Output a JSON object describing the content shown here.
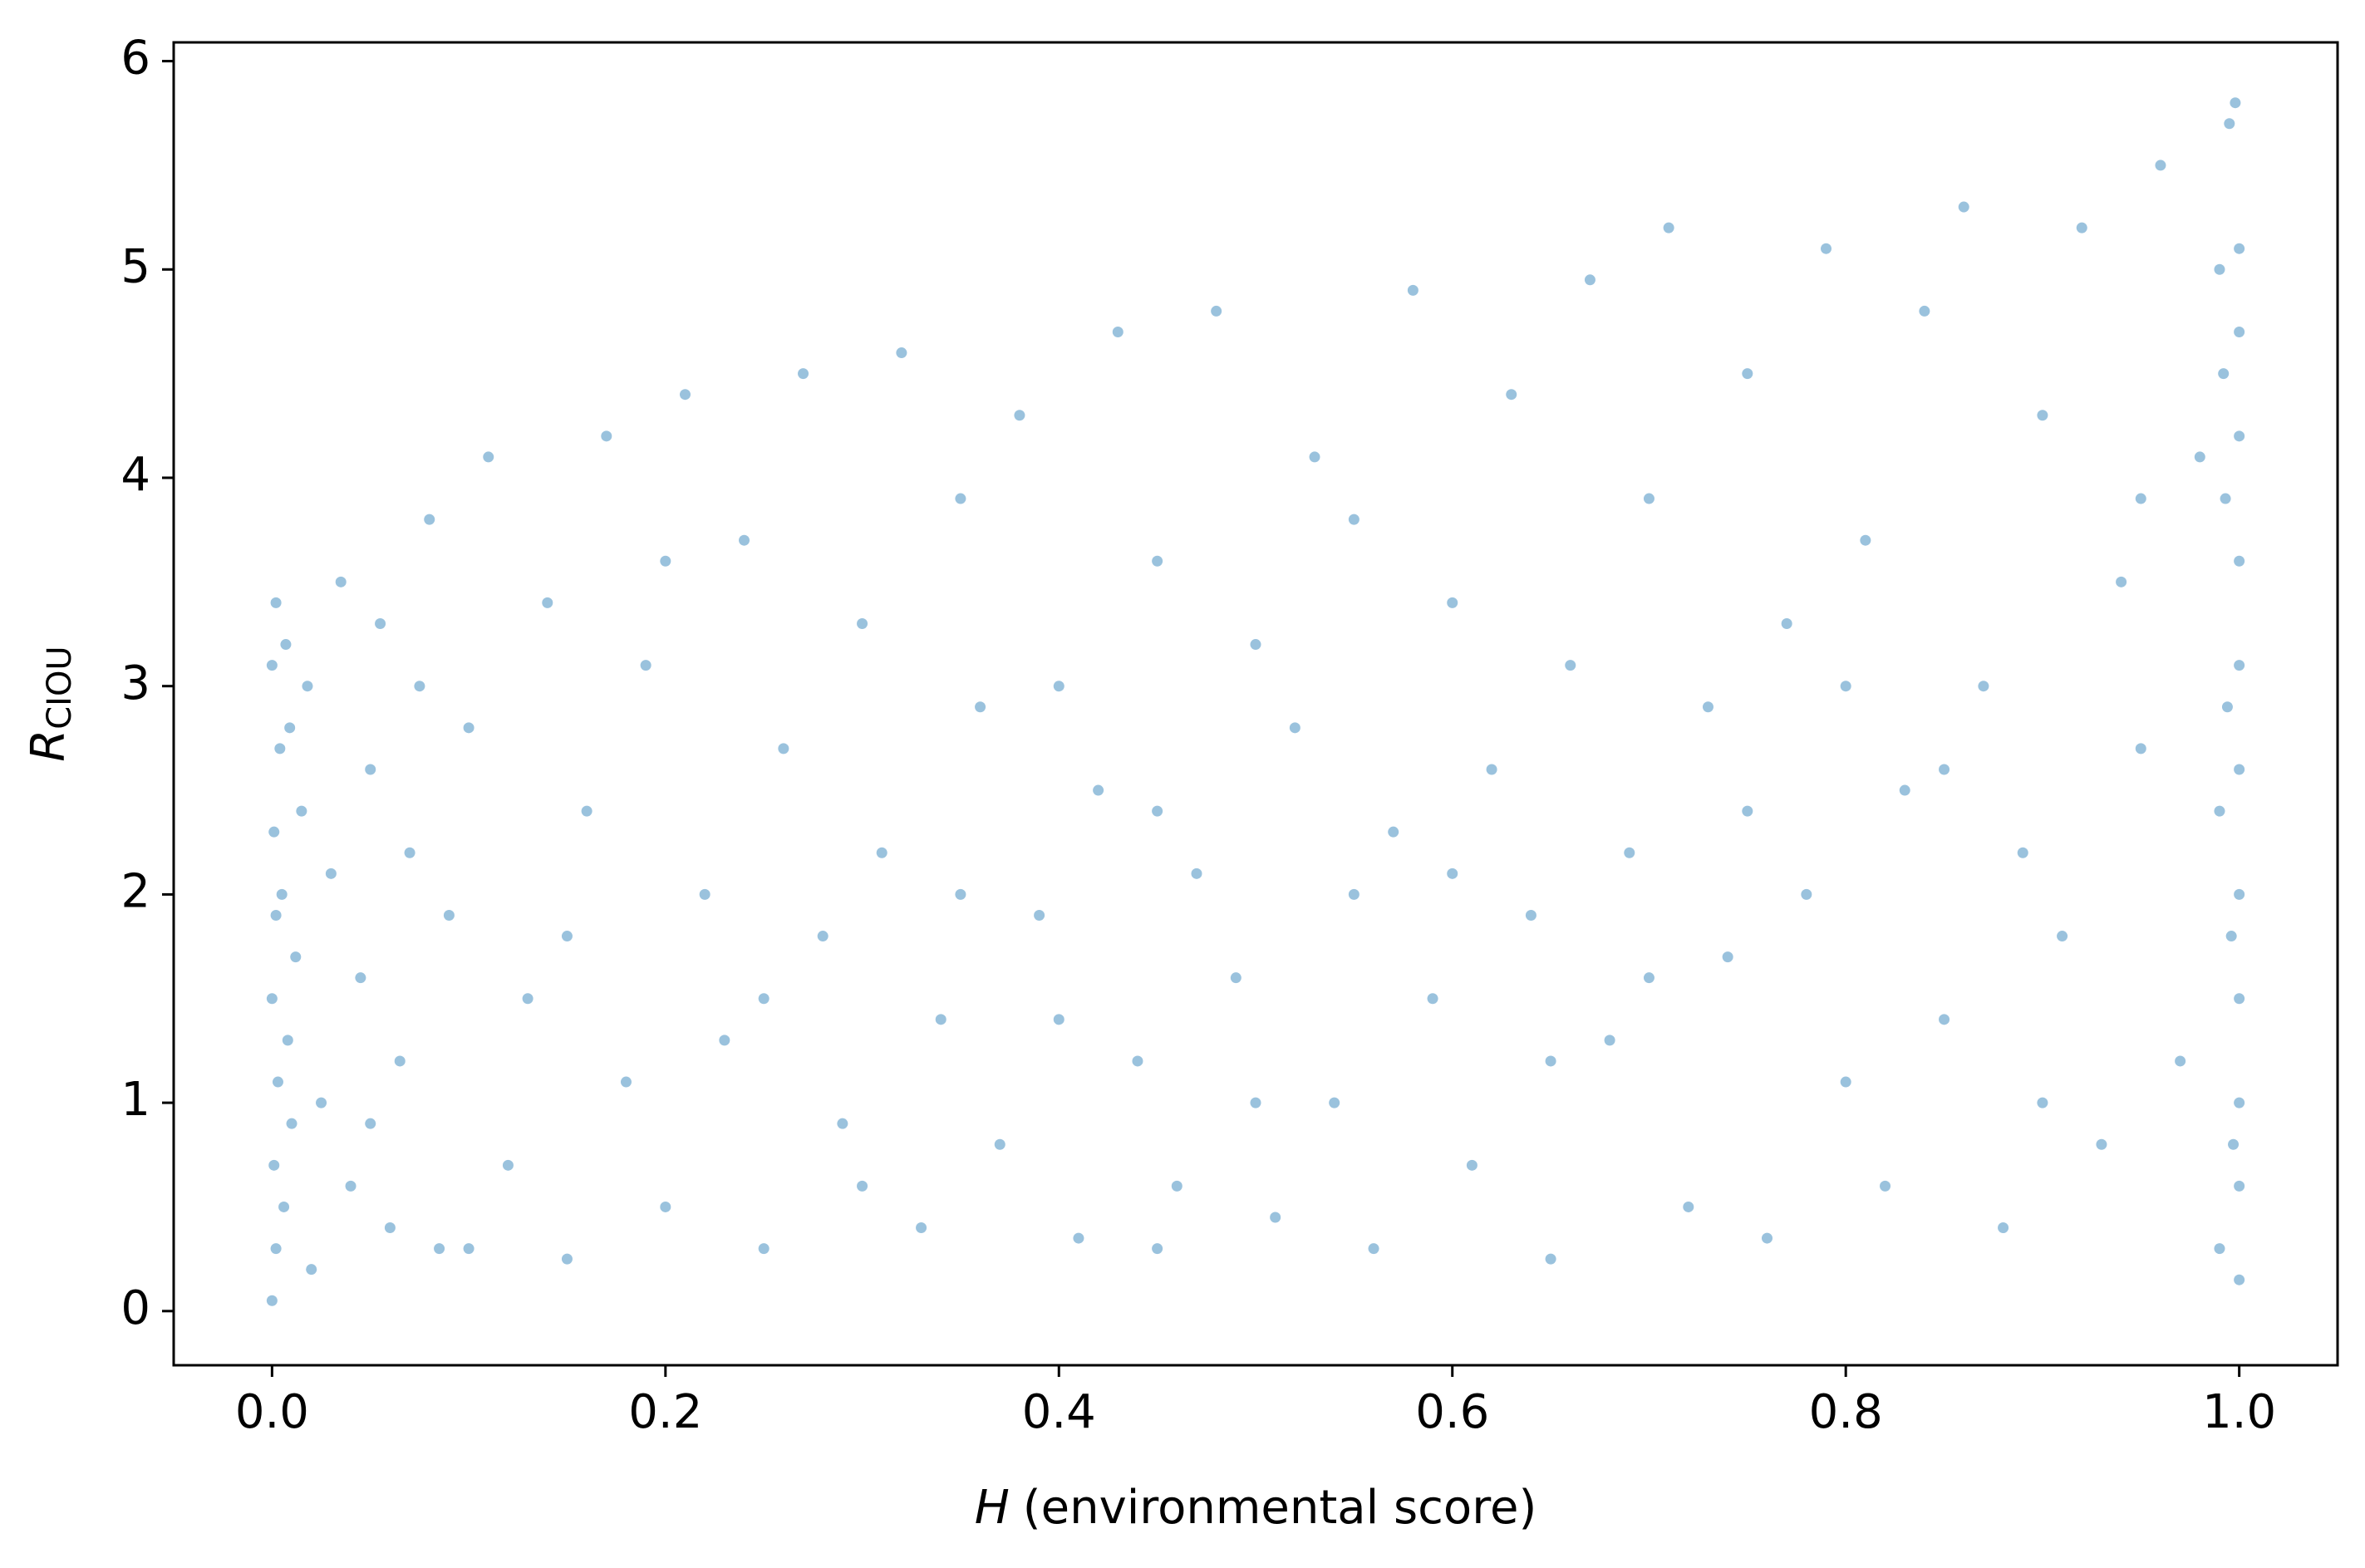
{
  "chart_data": {
    "type": "scatter",
    "xlabel": {
      "symbol": "H",
      "text": "(environmental score)"
    },
    "ylabel": {
      "symbol": "R",
      "subscript": "CIOU"
    },
    "color": "#1f77b4",
    "alpha": 0.45,
    "xlim": [
      -0.05,
      1.05
    ],
    "ylim": [
      -0.26,
      6.09
    ],
    "xticks": [
      {
        "value": 0,
        "label": "0.0"
      },
      0.2,
      0.4,
      0.6,
      0.8,
      {
        "value": 1,
        "label": "1.0"
      }
    ],
    "yticks": [
      0,
      1,
      2,
      3,
      4,
      5,
      6
    ],
    "grid": false,
    "x": [
      0,
      0.002,
      0.001,
      0.003,
      0,
      0.002,
      0.001,
      0.004,
      0,
      0.002,
      0.006,
      0.008,
      0.005,
      0.009,
      0.007,
      0.01,
      0.012,
      0.015,
      0.018,
      0.02,
      0.025,
      0.03,
      0.035,
      0.04,
      0.045,
      0.05,
      0.055,
      0.06,
      0.065,
      0.07,
      0.075,
      0.08,
      0.085,
      0.09,
      0.1,
      0.11,
      0.12,
      0.13,
      0.14,
      0.15,
      0.16,
      0.17,
      0.18,
      0.19,
      0.2,
      0.21,
      0.22,
      0.23,
      0.24,
      0.25,
      0.26,
      0.27,
      0.28,
      0.29,
      0.3,
      0.31,
      0.32,
      0.33,
      0.34,
      0.35,
      0.36,
      0.37,
      0.38,
      0.39,
      0.4,
      0.41,
      0.42,
      0.43,
      0.44,
      0.45,
      0.46,
      0.47,
      0.48,
      0.49,
      0.5,
      0.51,
      0.52,
      0.53,
      0.54,
      0.55,
      0.56,
      0.57,
      0.58,
      0.59,
      0.6,
      0.61,
      0.62,
      0.63,
      0.64,
      0.65,
      0.66,
      0.67,
      0.68,
      0.69,
      0.7,
      0.71,
      0.72,
      0.73,
      0.74,
      0.75,
      0.76,
      0.77,
      0.78,
      0.79,
      0.8,
      0.81,
      0.82,
      0.83,
      0.84,
      0.85,
      0.86,
      0.87,
      0.88,
      0.89,
      0.9,
      0.91,
      0.92,
      0.93,
      0.94,
      0.95,
      0.96,
      0.97,
      0.98,
      0.99,
      0.99,
      0.995,
      1,
      1,
      1,
      1,
      1,
      1,
      1,
      1,
      1,
      1,
      1,
      0.998,
      0.997,
      0.996,
      0.994,
      0.993,
      0.992,
      0.99,
      0.05,
      0.1,
      0.15,
      0.2,
      0.25,
      0.3,
      0.35,
      0.4,
      0.45,
      0.5,
      0.55,
      0.6,
      0.65,
      0.7,
      0.75,
      0.8,
      0.85,
      0.9,
      0.95,
      0.45
    ],
    "values": [
      0.05,
      0.3,
      0.7,
      1.1,
      1.5,
      1.9,
      2.3,
      2.7,
      3.1,
      3.4,
      0.5,
      1.3,
      2.0,
      2.8,
      3.2,
      0.9,
      1.7,
      2.4,
      3.0,
      0.2,
      1.0,
      2.1,
      3.5,
      0.6,
      1.6,
      2.6,
      3.3,
      0.4,
      1.2,
      2.2,
      3.0,
      3.8,
      0.3,
      1.9,
      2.8,
      4.1,
      0.7,
      1.5,
      3.4,
      0.25,
      2.4,
      4.2,
      1.1,
      3.1,
      0.5,
      4.4,
      2.0,
      1.3,
      3.7,
      0.3,
      2.7,
      4.5,
      1.8,
      0.9,
      3.3,
      2.2,
      4.6,
      0.4,
      1.4,
      3.9,
      2.9,
      0.8,
      4.3,
      1.9,
      3.0,
      0.35,
      2.5,
      4.7,
      1.2,
      3.6,
      0.6,
      2.1,
      4.8,
      1.6,
      3.2,
      0.45,
      2.8,
      4.1,
      1.0,
      3.8,
      0.3,
      2.3,
      4.9,
      1.5,
      3.4,
      0.7,
      2.6,
      4.4,
      1.9,
      0.25,
      3.1,
      4.95,
      1.3,
      2.2,
      3.9,
      5.2,
      0.5,
      2.9,
      1.7,
      4.5,
      0.35,
      3.3,
      2.0,
      5.1,
      1.1,
      3.7,
      0.6,
      2.5,
      4.8,
      1.4,
      5.3,
      3.0,
      0.4,
      2.2,
      4.3,
      1.8,
      5.2,
      0.8,
      3.5,
      2.7,
      5.5,
      1.2,
      4.1,
      0.3,
      2.4,
      5.7,
      0.15,
      0.6,
      1.0,
      1.5,
      2.0,
      2.6,
      3.1,
      3.6,
      4.2,
      4.7,
      5.1,
      5.8,
      0.8,
      1.8,
      2.9,
      3.9,
      4.5,
      5.0,
      0.9,
      0.3,
      1.8,
      3.6,
      1.5,
      0.6,
      2.0,
      1.4,
      2.4,
      1.0,
      2.0,
      2.1,
      1.2,
      1.6,
      2.4,
      3.0,
      2.6,
      1.0,
      3.9,
      0.3
    ]
  }
}
